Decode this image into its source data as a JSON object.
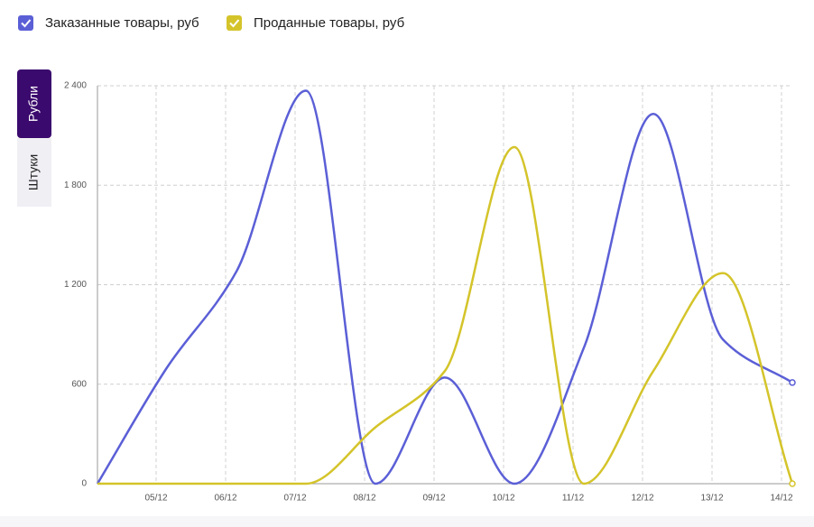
{
  "tabs": [
    "Рубли",
    "Штуки"
  ],
  "chart_data": {
    "type": "line",
    "categories": [
      null,
      "05/12",
      "06/12",
      "07/12",
      "08/12",
      "09/12",
      "10/12",
      "11/12",
      "12/12",
      "13/12",
      "14/12"
    ],
    "series": [
      {
        "name": "Заказанные товары, руб",
        "color": "#5b5fd6",
        "values": [
          0,
          700,
          1280,
          2370,
          0,
          640,
          0,
          820,
          2230,
          870,
          610
        ]
      },
      {
        "name": "Проданные товары, руб",
        "color": "#d4c42a",
        "values": [
          0,
          0,
          0,
          0,
          340,
          680,
          2030,
          0,
          680,
          1270,
          0
        ]
      }
    ],
    "ylim": [
      0,
      2400
    ],
    "yticks": [
      0,
      600,
      {
        "value": 1200,
        "label": "1 200"
      },
      {
        "value": 1800,
        "label": "1 800"
      },
      {
        "value": 2400,
        "label": "2 400"
      }
    ],
    "grid": true
  }
}
